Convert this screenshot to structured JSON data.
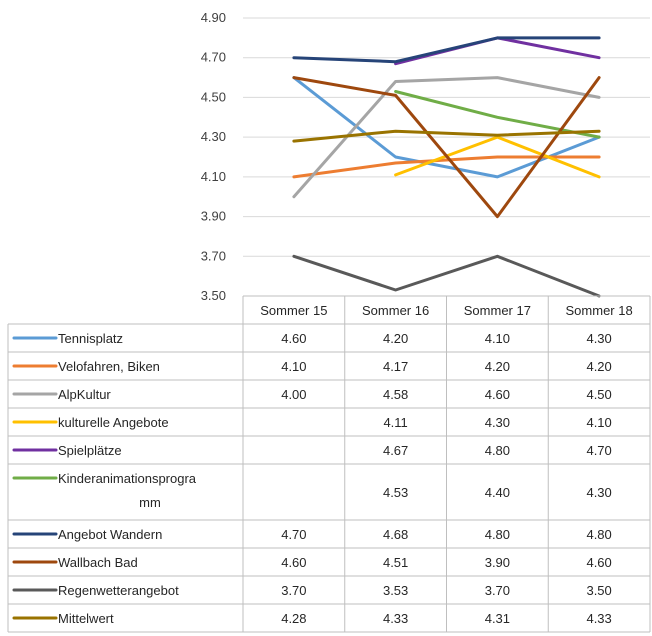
{
  "chart_data": {
    "type": "line",
    "categories": [
      "Sommer 15",
      "Sommer 16",
      "Sommer 17",
      "Sommer 18"
    ],
    "ylim": [
      3.5,
      4.9
    ],
    "yticks": [
      "4.90",
      "4.70",
      "4.50",
      "4.30",
      "4.10",
      "3.90",
      "3.70",
      "3.50"
    ],
    "grid": true,
    "legend": "data-table",
    "series": [
      {
        "name": "Tennisplatz",
        "color": "#5B9BD5",
        "values": [
          4.6,
          4.2,
          4.1,
          4.3
        ],
        "labels": [
          "4.60",
          "4.20",
          "4.10",
          "4.30"
        ]
      },
      {
        "name": "Velofahren, Biken",
        "color": "#ED7D31",
        "values": [
          4.1,
          4.17,
          4.2,
          4.2
        ],
        "labels": [
          "4.10",
          "4.17",
          "4.20",
          "4.20"
        ]
      },
      {
        "name": "AlpKultur",
        "color": "#A5A5A5",
        "values": [
          4.0,
          4.58,
          4.6,
          4.5
        ],
        "labels": [
          "4.00",
          "4.58",
          "4.60",
          "4.50"
        ]
      },
      {
        "name": "kulturelle Angebote",
        "color": "#FFC000",
        "values": [
          null,
          4.11,
          4.3,
          4.1
        ],
        "labels": [
          "",
          "4.11",
          "4.30",
          "4.10"
        ]
      },
      {
        "name": "Spielplätze",
        "color": "#7030A0",
        "values": [
          null,
          4.67,
          4.8,
          4.7
        ],
        "labels": [
          "",
          "4.67",
          "4.80",
          "4.70"
        ]
      },
      {
        "name": "Kinderanimationsprogramm",
        "nameLines": [
          "Kinderanimationsprogra",
          "mm"
        ],
        "color": "#70AD47",
        "values": [
          null,
          4.53,
          4.4,
          4.3
        ],
        "labels": [
          "",
          "4.53",
          "4.40",
          "4.30"
        ]
      },
      {
        "name": "Angebot Wandern",
        "color": "#264478",
        "values": [
          4.7,
          4.68,
          4.8,
          4.8
        ],
        "labels": [
          "4.70",
          "4.68",
          "4.80",
          "4.80"
        ]
      },
      {
        "name": "Wallbach Bad",
        "color": "#9E480E",
        "values": [
          4.6,
          4.51,
          3.9,
          4.6
        ],
        "labels": [
          "4.60",
          "4.51",
          "3.90",
          "4.60"
        ]
      },
      {
        "name": "Regenwetterangebot",
        "color": "#595959",
        "values": [
          3.7,
          3.53,
          3.7,
          3.5
        ],
        "labels": [
          "3.70",
          "3.53",
          "3.70",
          "3.50"
        ]
      },
      {
        "name": "Mittelwert",
        "color": "#997300",
        "values": [
          4.28,
          4.33,
          4.31,
          4.33
        ],
        "labels": [
          "4.28",
          "4.33",
          "4.31",
          "4.33"
        ]
      }
    ]
  }
}
